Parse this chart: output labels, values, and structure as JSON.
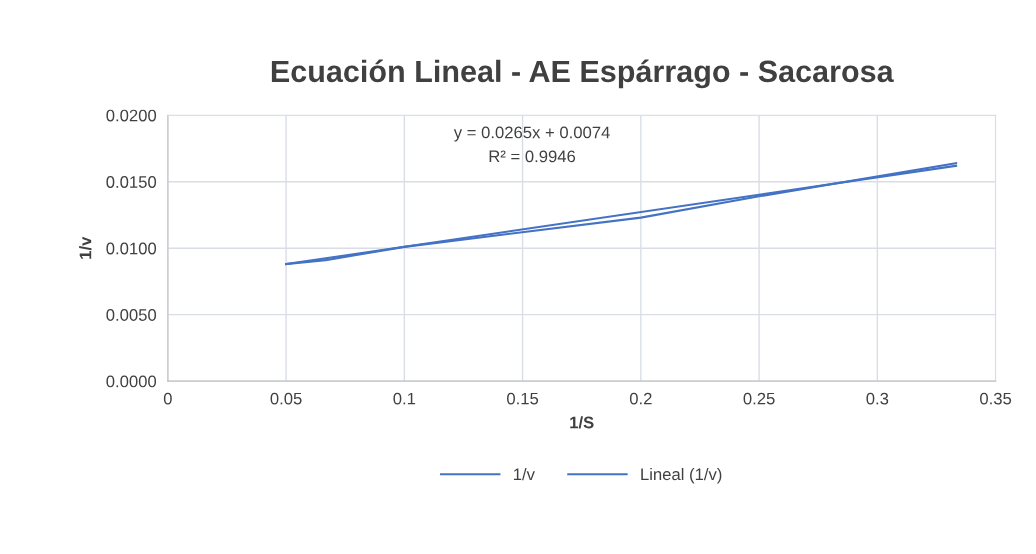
{
  "chart_data": {
    "type": "line",
    "title": "Ecuación Lineal - AE Espárrago - Sacarosa",
    "xlabel": "1/S",
    "ylabel": "1/v",
    "xlim": [
      0,
      0.35
    ],
    "xticks": [
      0,
      0.05,
      0.1,
      0.15,
      0.2,
      0.25,
      0.3,
      0.35
    ],
    "ylim": [
      0,
      0.02
    ],
    "yticks": [
      {
        "value": 0,
        "label": "0.0000"
      },
      {
        "value": 0.005,
        "label": "0.0050"
      },
      {
        "value": 0.01,
        "label": "0.0100"
      },
      {
        "value": 0.015,
        "label": "0.0150"
      },
      {
        "value": 0.02,
        "label": "0.0200"
      }
    ],
    "grid": true,
    "legend": "bottom",
    "series": [
      {
        "name": "1/v",
        "color": "#4472c4",
        "x": [
          0.05,
          0.0667,
          0.1,
          0.2,
          0.25,
          0.3333
        ],
        "values": [
          0.0088,
          0.0091,
          0.0101,
          0.0123,
          0.0139,
          0.0164
        ]
      },
      {
        "name": "Lineal (1/v)",
        "type": "line",
        "color": "#4472c4",
        "x": [
          0.05,
          0.3333
        ],
        "values": [
          0.0088,
          0.0162
        ]
      }
    ],
    "annotations": [
      "y = 0.0265x + 0.0074",
      "R² = 0.9946"
    ]
  }
}
